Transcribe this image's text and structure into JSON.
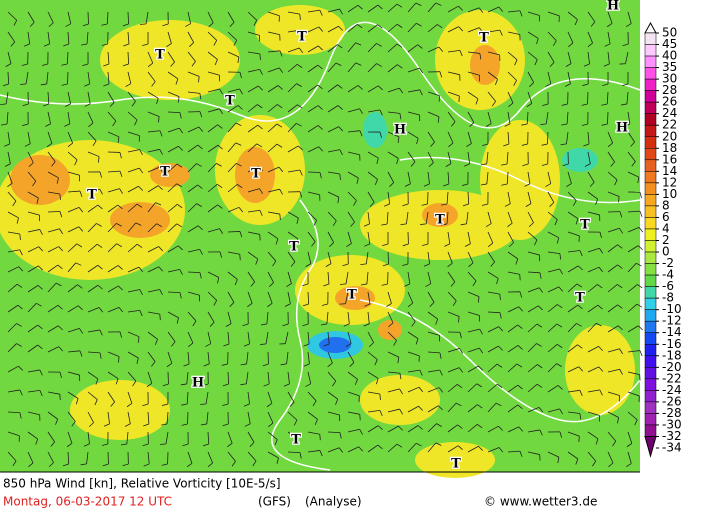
{
  "header": {
    "title": "850 hPa Wind [kn], Relative Vorticity [10E-5/s]",
    "date": "Montag, 06-03-2017  12 UTC",
    "model": "(GFS)",
    "run": "(Analyse)",
    "credit": "© www.wetter3.de"
  },
  "colorbar": {
    "levels": [
      50,
      45,
      40,
      35,
      30,
      28,
      26,
      24,
      22,
      20,
      18,
      16,
      14,
      12,
      10,
      8,
      6,
      4,
      2,
      0,
      -2,
      -4,
      -6,
      -8,
      -10,
      -12,
      -14,
      -16,
      -18,
      -20,
      -22,
      -24,
      -26,
      -28,
      -30,
      -32,
      -34
    ],
    "colors": [
      "#ffffff",
      "#f4e4f4",
      "#ffc8ff",
      "#ff90ff",
      "#ff50e8",
      "#f020c8",
      "#d00098",
      "#c00058",
      "#b00024",
      "#c41818",
      "#d43010",
      "#e04818",
      "#e86020",
      "#f07820",
      "#f49020",
      "#f8a820",
      "#f8c020",
      "#f8d820",
      "#f0f020",
      "#d0f030",
      "#a8e840",
      "#84e040",
      "#60d848",
      "#40d8a8",
      "#30d0e8",
      "#20a8f0",
      "#2078f0",
      "#1448f0",
      "#2020f0",
      "#4010f0",
      "#6010e0",
      "#8010e0",
      "#9020d0",
      "#a030c0",
      "#a020b0",
      "#901090",
      "#700070"
    ]
  },
  "centers": [
    "H",
    "T",
    "T",
    "T",
    "T",
    "H",
    "H",
    "T",
    "T",
    "T",
    "T",
    "T",
    "T",
    "T",
    "T",
    "H",
    "T",
    "T"
  ]
}
